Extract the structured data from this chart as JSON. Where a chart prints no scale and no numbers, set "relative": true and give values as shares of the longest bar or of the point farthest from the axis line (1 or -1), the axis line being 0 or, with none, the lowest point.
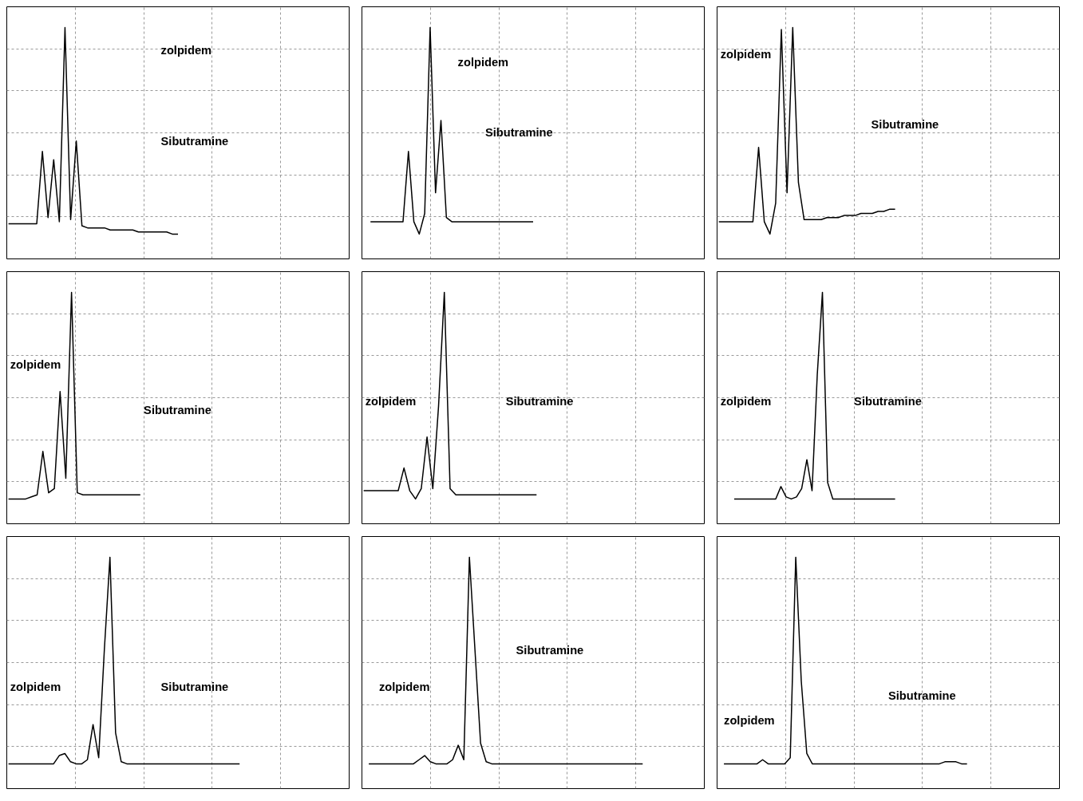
{
  "chart_data": [
    {
      "type": "line",
      "relative": true,
      "grid": true,
      "categories": [
        null,
        null,
        null,
        null,
        null,
        null,
        null,
        null,
        null,
        null,
        null,
        null,
        null,
        null,
        null,
        null,
        null,
        null,
        null,
        null,
        null,
        null,
        null,
        null,
        null,
        null,
        null,
        null,
        null,
        null,
        null
      ],
      "series": [
        {
          "color": "#000000",
          "values": [
            0.05,
            0.05,
            0.05,
            0.05,
            0.05,
            0.05,
            0.4,
            0.08,
            0.36,
            0.06,
            1,
            0.07,
            0.45,
            0.04,
            0.03,
            0.03,
            0.03,
            0.03,
            0.02,
            0.02,
            0.02,
            0.02,
            0.02,
            0.01,
            0.01,
            0.01,
            0.01,
            0.01,
            0.01,
            0,
            0
          ]
        }
      ],
      "annotations": [
        "zolpidem",
        "Sibutramine"
      ]
    },
    {
      "type": "line",
      "relative": true,
      "grid": true,
      "categories": [
        null,
        null,
        null,
        null,
        null,
        null,
        null,
        null,
        null,
        null,
        null,
        null,
        null,
        null,
        null,
        null,
        null,
        null,
        null,
        null,
        null,
        null,
        null,
        null,
        null,
        null,
        null,
        null,
        null,
        null,
        null
      ],
      "series": [
        {
          "color": "#000000",
          "values": [
            0.06,
            0.06,
            0.06,
            0.06,
            0.06,
            0.06,
            0.06,
            0.4,
            0.06,
            0,
            0.1,
            1,
            0.2,
            0.55,
            0.08,
            0.06,
            0.06,
            0.06,
            0.06,
            0.06,
            0.06,
            0.06,
            0.06,
            0.06,
            0.06,
            0.06,
            0.06,
            0.06,
            0.06,
            0.06,
            0.06
          ]
        }
      ],
      "annotations": [
        "zolpidem",
        "Sibutramine"
      ]
    },
    {
      "type": "line",
      "relative": true,
      "grid": true,
      "categories": [
        null,
        null,
        null,
        null,
        null,
        null,
        null,
        null,
        null,
        null,
        null,
        null,
        null,
        null,
        null,
        null,
        null,
        null,
        null,
        null,
        null,
        null,
        null,
        null,
        null,
        null,
        null,
        null,
        null,
        null,
        null,
        null
      ],
      "series": [
        {
          "color": "#000000",
          "values": [
            0.06,
            0.06,
            0.06,
            0.06,
            0.06,
            0.06,
            0.06,
            0.42,
            0.06,
            0,
            0.15,
            0.99,
            0.2,
            1,
            0.25,
            0.07,
            0.07,
            0.07,
            0.07,
            0.08,
            0.08,
            0.08,
            0.09,
            0.09,
            0.09,
            0.1,
            0.1,
            0.1,
            0.11,
            0.11,
            0.12,
            0.12
          ]
        }
      ],
      "annotations": [
        "zolpidem",
        "Sibutramine"
      ]
    },
    {
      "type": "line",
      "relative": true,
      "grid": true,
      "categories": [
        null,
        null,
        null,
        null,
        null,
        null,
        null,
        null,
        null,
        null,
        null,
        null,
        null,
        null,
        null,
        null,
        null,
        null,
        null,
        null,
        null,
        null,
        null,
        null
      ],
      "series": [
        {
          "color": "#000000",
          "values": [
            0,
            0,
            0,
            0,
            0.01,
            0.02,
            0.23,
            0.03,
            0.05,
            0.52,
            0.1,
            1,
            0.03,
            0.02,
            0.02,
            0.02,
            0.02,
            0.02,
            0.02,
            0.02,
            0.02,
            0.02,
            0.02,
            0.02
          ]
        }
      ],
      "annotations": [
        "zolpidem",
        "Sibutramine"
      ]
    },
    {
      "type": "line",
      "relative": true,
      "grid": true,
      "categories": [
        null,
        null,
        null,
        null,
        null,
        null,
        null,
        null,
        null,
        null,
        null,
        null,
        null,
        null,
        null,
        null,
        null,
        null,
        null,
        null,
        null,
        null,
        null,
        null,
        null,
        null,
        null,
        null,
        null,
        null,
        null
      ],
      "series": [
        {
          "color": "#000000",
          "values": [
            0.04,
            0.04,
            0.04,
            0.04,
            0.04,
            0.04,
            0.04,
            0.15,
            0.04,
            0,
            0.05,
            0.3,
            0.05,
            0.45,
            1,
            0.05,
            0.02,
            0.02,
            0.02,
            0.02,
            0.02,
            0.02,
            0.02,
            0.02,
            0.02,
            0.02,
            0.02,
            0.02,
            0.02,
            0.02,
            0.02
          ]
        }
      ],
      "annotations": [
        "zolpidem",
        "Sibutramine"
      ]
    },
    {
      "type": "line",
      "relative": true,
      "grid": true,
      "categories": [
        null,
        null,
        null,
        null,
        null,
        null,
        null,
        null,
        null,
        null,
        null,
        null,
        null,
        null,
        null,
        null,
        null,
        null,
        null,
        null,
        null,
        null,
        null,
        null,
        null,
        null,
        null,
        null,
        null,
        null,
        null,
        null
      ],
      "series": [
        {
          "color": "#000000",
          "values": [
            0,
            0,
            0,
            0,
            0,
            0,
            0,
            0,
            0,
            0.06,
            0.01,
            0,
            0.01,
            0.05,
            0.19,
            0.04,
            0.6,
            1,
            0.08,
            0,
            0,
            0,
            0,
            0,
            0,
            0,
            0,
            0,
            0,
            0,
            0,
            0
          ]
        }
      ],
      "annotations": [
        "zolpidem",
        "Sibutramine"
      ]
    },
    {
      "type": "line",
      "relative": true,
      "grid": true,
      "categories": [
        null,
        null,
        null,
        null,
        null,
        null,
        null,
        null,
        null,
        null,
        null,
        null,
        null,
        null,
        null,
        null,
        null,
        null,
        null,
        null,
        null,
        null,
        null,
        null,
        null,
        null,
        null,
        null,
        null,
        null,
        null,
        null,
        null,
        null,
        null,
        null,
        null,
        null,
        null,
        null,
        null,
        null
      ],
      "series": [
        {
          "color": "#000000",
          "values": [
            0,
            0,
            0,
            0,
            0,
            0,
            0,
            0,
            0,
            0.04,
            0.05,
            0.01,
            0,
            0,
            0.02,
            0.19,
            0.03,
            0.55,
            1,
            0.15,
            0.01,
            0,
            0,
            0,
            0,
            0,
            0,
            0,
            0,
            0,
            0,
            0,
            0,
            0,
            0,
            0,
            0,
            0,
            0,
            0,
            0,
            0
          ]
        }
      ],
      "annotations": [
        "zolpidem",
        "Sibutramine"
      ]
    },
    {
      "type": "line",
      "relative": true,
      "grid": true,
      "categories": [
        null,
        null,
        null,
        null,
        null,
        null,
        null,
        null,
        null,
        null,
        null,
        null,
        null,
        null,
        null,
        null,
        null,
        null,
        null,
        null,
        null,
        null,
        null,
        null,
        null,
        null,
        null,
        null,
        null,
        null,
        null,
        null,
        null,
        null,
        null,
        null,
        null,
        null,
        null,
        null,
        null,
        null,
        null,
        null,
        null,
        null,
        null,
        null,
        null,
        null
      ],
      "series": [
        {
          "color": "#000000",
          "values": [
            0,
            0,
            0,
            0,
            0,
            0,
            0,
            0,
            0,
            0.02,
            0.04,
            0.01,
            0,
            0,
            0,
            0.02,
            0.09,
            0.02,
            1,
            0.55,
            0.1,
            0.01,
            0,
            0,
            0,
            0,
            0,
            0,
            0,
            0,
            0,
            0,
            0,
            0,
            0,
            0,
            0,
            0,
            0,
            0,
            0,
            0,
            0,
            0,
            0,
            0,
            0,
            0,
            0,
            0
          ]
        }
      ],
      "annotations": [
        "zolpidem",
        "Sibutramine"
      ]
    },
    {
      "type": "line",
      "relative": true,
      "grid": true,
      "categories": [
        null,
        null,
        null,
        null,
        null,
        null,
        null,
        null,
        null,
        null,
        null,
        null,
        null,
        null,
        null,
        null,
        null,
        null,
        null,
        null,
        null,
        null,
        null,
        null,
        null,
        null,
        null,
        null,
        null,
        null,
        null,
        null,
        null,
        null,
        null,
        null,
        null,
        null,
        null,
        null,
        null,
        null,
        null,
        null,
        null
      ],
      "series": [
        {
          "color": "#000000",
          "values": [
            0,
            0,
            0,
            0,
            0,
            0,
            0,
            0.02,
            0,
            0,
            0,
            0,
            0.03,
            1,
            0.4,
            0.05,
            0,
            0,
            0,
            0,
            0,
            0,
            0,
            0,
            0,
            0,
            0,
            0,
            0,
            0,
            0,
            0,
            0,
            0,
            0,
            0,
            0,
            0,
            0,
            0,
            0.01,
            0.01,
            0.01,
            0,
            0
          ]
        }
      ],
      "annotations": [
        "zolpidem",
        "Sibutramine"
      ]
    }
  ]
}
